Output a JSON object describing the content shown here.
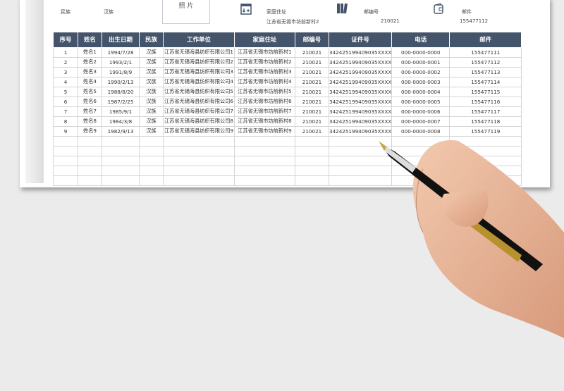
{
  "info": {
    "ethnicity_label": "民族",
    "ethnicity_value": "汉族",
    "photo_label": "照 片",
    "address_label": "家庭住址",
    "address_value": "江苏省无锡市坊前新村2",
    "postcode_label": "邮编号",
    "postcode_value": "210021",
    "email_label": "邮件",
    "email_value": "155477112"
  },
  "table": {
    "headers": [
      "序号",
      "姓名",
      "出生日期",
      "民族",
      "工作单位",
      "家庭住址",
      "邮编号",
      "证件号",
      "电话",
      "邮件"
    ],
    "rows": [
      [
        "1",
        "姓名1",
        "1994/7/28",
        "汉族",
        "江苏省无锡海县纺织有限公司1",
        "江苏省无锡市坊前新村1",
        "210021",
        "342425199409035XXXX",
        "000-0000-0000",
        "155477111"
      ],
      [
        "2",
        "姓名2",
        "1993/2/1",
        "汉族",
        "江苏省无锡海县纺织有限公司2",
        "江苏省无锡市坊前新村2",
        "210021",
        "342425199409035XXXX",
        "000-0000-0001",
        "155477112"
      ],
      [
        "3",
        "姓名3",
        "1991/8/9",
        "汉族",
        "江苏省无锡海县纺织有限公司3",
        "江苏省无锡市坊前新村3",
        "210021",
        "342425199409035XXXX",
        "000-0000-0002",
        "155477113"
      ],
      [
        "4",
        "姓名4",
        "1990/2/13",
        "汉族",
        "江苏省无锡海县纺织有限公司4",
        "江苏省无锡市坊前新村4",
        "210021",
        "342425199409035XXXX",
        "000-0000-0003",
        "155477114"
      ],
      [
        "5",
        "姓名5",
        "1988/8/20",
        "汉族",
        "江苏省无锡海县纺织有限公司5",
        "江苏省无锡市坊前新村5",
        "210021",
        "342425199409035XXXX",
        "000-0000-0004",
        "155477115"
      ],
      [
        "6",
        "姓名6",
        "1987/2/25",
        "汉族",
        "江苏省无锡海县纺织有限公司6",
        "江苏省无锡市坊前新村6",
        "210021",
        "342425199409035XXXX",
        "000-0000-0005",
        "155477116"
      ],
      [
        "7",
        "姓名7",
        "1985/9/1",
        "汉族",
        "江苏省无锡海县纺织有限公司7",
        "江苏省无锡市坊前新村7",
        "210021",
        "342425199409035XXXX",
        "000-0000-0006",
        "155477117"
      ],
      [
        "8",
        "姓名8",
        "1984/3/8",
        "汉族",
        "江苏省无锡海县纺织有限公司8",
        "江苏省无锡市坊前新村8",
        "210021",
        "342425199409035XXXX",
        "000-0000-0007",
        "155477118"
      ],
      [
        "9",
        "姓名9",
        "1982/9/13",
        "汉族",
        "江苏省无锡海县纺织有限公司9",
        "江苏省无锡市坊前新村9",
        "210021",
        "342425199409035XXXX",
        "000-0000-0008",
        "155477119"
      ]
    ]
  },
  "colors": {
    "header_bg": "#44546a",
    "header_text": "#ffffff"
  }
}
